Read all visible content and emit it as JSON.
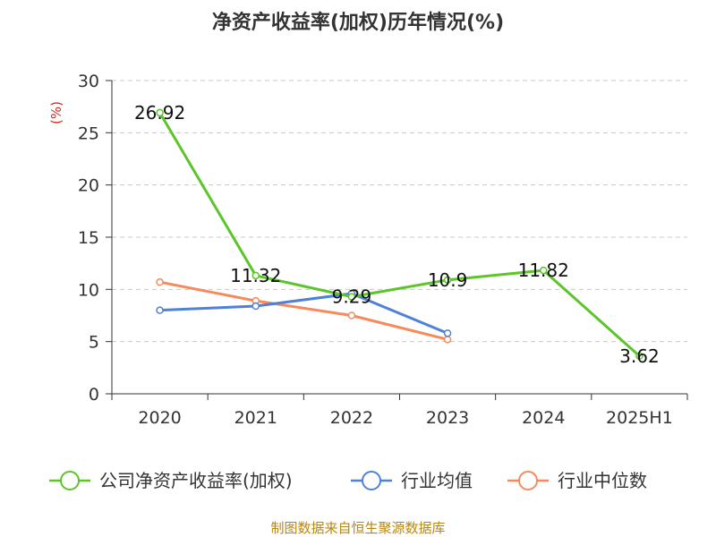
{
  "chart_data": {
    "type": "line",
    "title": "净资产收益率(加权)历年情况(%)",
    "ylabel": "(%)",
    "xlabel": "",
    "categories": [
      "2020",
      "2021",
      "2022",
      "2023",
      "2024",
      "2025H1"
    ],
    "ylim": [
      0,
      30
    ],
    "yticks": [
      0,
      5,
      10,
      15,
      20,
      25,
      30
    ],
    "grid": "horizontal-dashed",
    "legend_position": "bottom",
    "series": [
      {
        "name": "公司净资产收益率(加权)",
        "color": "#5bc52a",
        "values": [
          26.92,
          11.32,
          9.29,
          10.9,
          11.82,
          3.62
        ],
        "labels": [
          "26.92",
          "11.32",
          "9.29",
          "10.9",
          "11.82",
          "3.62"
        ]
      },
      {
        "name": "行业均值",
        "color": "#4f81d9",
        "values": [
          8.0,
          8.4,
          9.6,
          5.8,
          null,
          null
        ]
      },
      {
        "name": "行业中位数",
        "color": "#f78a5b",
        "values": [
          10.7,
          8.9,
          7.5,
          5.2,
          null,
          null
        ]
      }
    ]
  },
  "source": "制图数据来自恒生聚源数据库"
}
